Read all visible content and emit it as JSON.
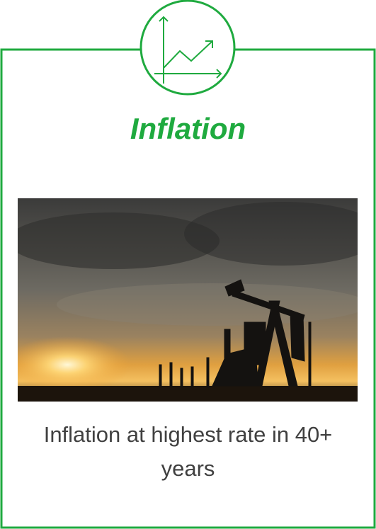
{
  "title": "Inflation",
  "caption": "Inflation at highest rate in 40+ years"
}
